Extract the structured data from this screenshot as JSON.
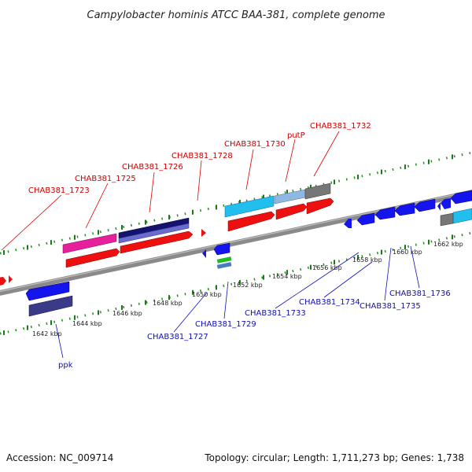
{
  "title": "Campylobacter hominis ATCC BAA-381, complete genome",
  "footer": {
    "accession": "Accession: NC_009714",
    "summary": "Topology: circular; Length: 1,711,273 bp; Genes: 1,738"
  },
  "colors": {
    "backbone": "#8a8a8a",
    "forward_label": "#cc0000",
    "reverse_label": "#1010aa",
    "tick_green": "#1a7a1a"
  },
  "scale_labels": [
    "1642 kbp",
    "1644 kbp",
    "1646 kbp",
    "1648 kbp",
    "1650 kbp",
    "1652 kbp",
    "1654 kbp",
    "1656 kbp",
    "1658 kbp",
    "1660 kbp",
    "1662 kbp"
  ],
  "forward_genes": [
    "CHAB381_1723",
    "CHAB381_1725",
    "CHAB381_1726",
    "CHAB381_1728",
    "CHAB381_1730",
    "putP",
    "CHAB381_1732"
  ],
  "reverse_genes": [
    "ppk",
    "CHAB381_1727",
    "CHAB381_1729",
    "CHAB381_1733",
    "CHAB381_1734",
    "CHAB381_1735",
    "CHAB381_1736"
  ]
}
